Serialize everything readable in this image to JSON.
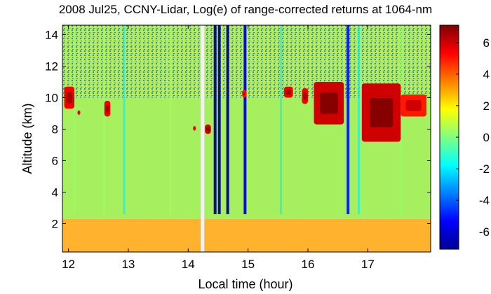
{
  "chart_data": {
    "type": "heatmap",
    "title": "2008 Jul25, CCNY-Lidar, Log(e) of range-corrected returns at 1064-nm",
    "xlabel": "Local time (hour)",
    "ylabel": "Altitude (km)",
    "xlim": [
      11.9,
      18.05
    ],
    "ylim": [
      0.2,
      14.6
    ],
    "xticks": [
      12,
      13,
      14,
      15,
      16,
      17
    ],
    "yticks": [
      2,
      4,
      6,
      8,
      10,
      12,
      14
    ],
    "colorbar": {
      "min": -7.1,
      "max": 7.1,
      "ticks": [
        6,
        4,
        2,
        0,
        -2,
        -4,
        -6
      ],
      "colormap": "jet",
      "stops": [
        "#00008f",
        "#0000ff",
        "#0080ff",
        "#00ffff",
        "#80ff80",
        "#ffff00",
        "#ff8000",
        "#ff0000",
        "#800000"
      ]
    },
    "background": {
      "upper_value": 1.2,
      "lower_value": 3.6,
      "boundary_altitude_km": 2.3,
      "upper_color": "#a6f060",
      "lower_color": "#ffb22e"
    },
    "data_gap": {
      "start_hour": 14.21,
      "end_hour": 14.27
    },
    "vertical_streaks": [
      {
        "x": 12.1,
        "value": 0.3
      },
      {
        "x": 12.6,
        "value": 0.4
      },
      {
        "x": 12.93,
        "value": -2
      },
      {
        "x": 13.7,
        "value": 0.5
      },
      {
        "x": 14.45,
        "value": -7
      },
      {
        "x": 14.52,
        "value": -7
      },
      {
        "x": 14.66,
        "value": -7
      },
      {
        "x": 14.95,
        "value": -6
      },
      {
        "x": 15.55,
        "value": -2
      },
      {
        "x": 16.67,
        "value": -5
      },
      {
        "x": 16.85,
        "value": -2
      },
      {
        "x": 17.55,
        "value": 0.3
      }
    ],
    "cloud_layers": [
      {
        "x_start": 11.93,
        "x_end": 12.1,
        "alt_bottom_km": 9.3,
        "alt_top_km": 10.7,
        "value": 5.5
      },
      {
        "x_start": 12.15,
        "x_end": 12.2,
        "alt_bottom_km": 8.9,
        "alt_top_km": 9.2,
        "value": 5.0
      },
      {
        "x_start": 12.6,
        "x_end": 12.7,
        "alt_bottom_km": 8.8,
        "alt_top_km": 9.8,
        "value": 5.5
      },
      {
        "x_start": 14.08,
        "x_end": 14.13,
        "alt_bottom_km": 7.9,
        "alt_top_km": 8.2,
        "value": 5.0
      },
      {
        "x_start": 14.28,
        "x_end": 14.38,
        "alt_bottom_km": 7.7,
        "alt_top_km": 8.3,
        "value": 6.0
      },
      {
        "x_start": 14.9,
        "x_end": 14.97,
        "alt_bottom_km": 10.0,
        "alt_top_km": 10.5,
        "value": 5.0
      },
      {
        "x_start": 15.6,
        "x_end": 15.75,
        "alt_bottom_km": 10.0,
        "alt_top_km": 10.7,
        "value": 5.5
      },
      {
        "x_start": 15.9,
        "x_end": 16.0,
        "alt_bottom_km": 9.6,
        "alt_top_km": 10.6,
        "value": 5.5
      },
      {
        "x_start": 16.1,
        "x_end": 16.6,
        "alt_bottom_km": 8.3,
        "alt_top_km": 11.0,
        "value": 6.0
      },
      {
        "x_start": 16.9,
        "x_end": 17.55,
        "alt_bottom_km": 7.2,
        "alt_top_km": 10.9,
        "value": 6.0
      },
      {
        "x_start": 17.55,
        "x_end": 17.98,
        "alt_bottom_km": 8.8,
        "alt_top_km": 10.2,
        "value": 5.0
      }
    ],
    "noise_region_alt_km": [
      10.0,
      14.6
    ],
    "grid": false
  }
}
